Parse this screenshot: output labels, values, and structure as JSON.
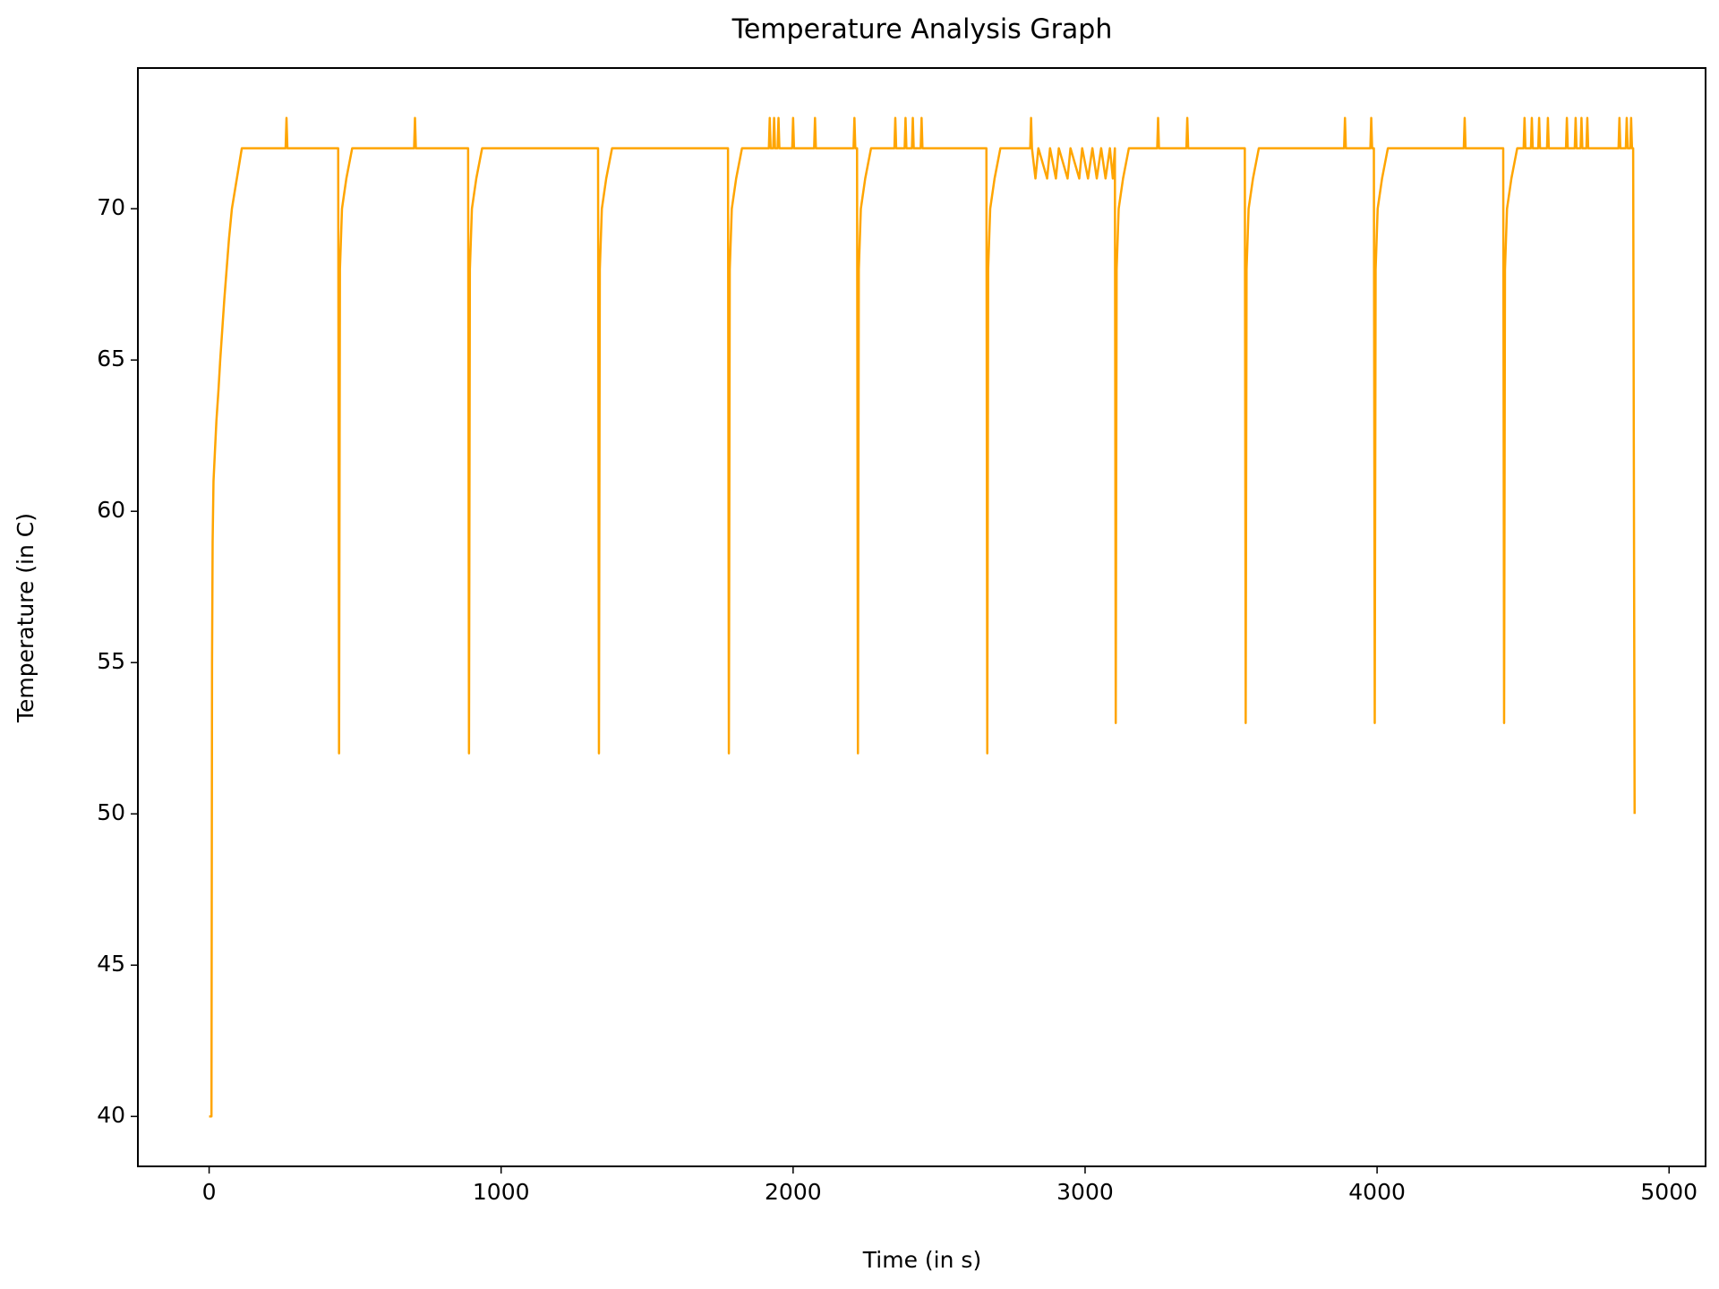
{
  "chart_data": {
    "type": "line",
    "title": "Temperature Analysis Graph",
    "x_label": "Time (in s)",
    "y_label": "Temperature (in C)",
    "x": [
      0,
      8,
      10,
      12,
      15,
      20,
      25,
      32,
      38,
      45,
      52,
      60,
      68,
      78,
      95,
      112,
      262,
      265,
      268,
      442,
      445,
      448,
      455,
      470,
      490,
      702,
      705,
      708,
      887,
      890,
      893,
      900,
      915,
      935,
      1332,
      1335,
      1338,
      1345,
      1360,
      1380,
      1777,
      1780,
      1783,
      1790,
      1805,
      1825,
      1917,
      1920,
      1923,
      1932,
      1935,
      1938,
      1947,
      1950,
      1953,
      1997,
      2000,
      2003,
      2072,
      2075,
      2078,
      2207,
      2210,
      2213,
      2219,
      2222,
      2225,
      2232,
      2247,
      2267,
      2347,
      2350,
      2353,
      2382,
      2385,
      2388,
      2407,
      2410,
      2413,
      2437,
      2440,
      2443,
      2662,
      2665,
      2668,
      2675,
      2690,
      2710,
      2812,
      2815,
      2818,
      2830,
      2840,
      2870,
      2880,
      2900,
      2910,
      2940,
      2950,
      2980,
      2990,
      3010,
      3025,
      3040,
      3055,
      3070,
      3085,
      3095,
      3102,
      3105,
      3108,
      3115,
      3130,
      3150,
      3247,
      3250,
      3253,
      3347,
      3350,
      3353,
      3547,
      3550,
      3553,
      3560,
      3575,
      3595,
      3887,
      3890,
      3893,
      3977,
      3980,
      3983,
      3989,
      3992,
      3995,
      4002,
      4017,
      4037,
      4297,
      4300,
      4303,
      4432,
      4435,
      4438,
      4445,
      4460,
      4480,
      4502,
      4505,
      4508,
      4527,
      4530,
      4533,
      4552,
      4555,
      4558,
      4582,
      4585,
      4588,
      4647,
      4650,
      4653,
      4677,
      4680,
      4683,
      4697,
      4700,
      4703,
      4717,
      4720,
      4723,
      4827,
      4830,
      4833,
      4852,
      4855,
      4858,
      4867,
      4870,
      4873,
      4877,
      4882
    ],
    "series": [
      {
        "color": "#ffa500",
        "values": [
          40,
          40,
          55,
          59,
          61,
          62,
          63,
          64,
          65,
          66,
          67,
          68,
          69,
          70,
          71,
          72,
          72,
          73,
          72,
          72,
          52,
          68,
          70,
          71,
          72,
          72,
          73,
          72,
          72,
          52,
          68,
          70,
          71,
          72,
          72,
          52,
          68,
          70,
          71,
          72,
          72,
          52,
          68,
          70,
          71,
          72,
          72,
          73,
          72,
          72,
          73,
          72,
          72,
          73,
          72,
          72,
          73,
          72,
          72,
          73,
          72,
          72,
          73,
          72,
          72,
          52,
          68,
          70,
          71,
          72,
          72,
          73,
          72,
          72,
          73,
          72,
          72,
          73,
          72,
          72,
          73,
          72,
          72,
          52,
          68,
          70,
          71,
          72,
          72,
          73,
          72,
          71,
          72,
          71,
          72,
          71,
          72,
          71,
          72,
          71,
          72,
          71,
          72,
          71,
          72,
          71,
          72,
          71,
          72,
          53,
          68,
          70,
          71,
          72,
          72,
          73,
          72,
          72,
          73,
          72,
          72,
          53,
          68,
          70,
          71,
          72,
          72,
          73,
          72,
          72,
          73,
          72,
          72,
          53,
          68,
          70,
          71,
          72,
          72,
          73,
          72,
          72,
          53,
          68,
          70,
          71,
          72,
          72,
          73,
          72,
          72,
          73,
          72,
          72,
          73,
          72,
          72,
          73,
          72,
          72,
          73,
          72,
          72,
          73,
          72,
          72,
          73,
          72,
          72,
          73,
          72,
          72,
          73,
          72,
          72,
          73,
          72,
          72,
          73,
          72,
          72,
          50
        ]
      }
    ],
    "xlim": [
      -244,
      5125
    ],
    "ylim": [
      38.35,
      74.65
    ],
    "xticks": [
      0,
      1000,
      2000,
      3000,
      4000,
      5000
    ],
    "yticks": [
      40,
      45,
      50,
      55,
      60,
      65,
      70
    ]
  }
}
